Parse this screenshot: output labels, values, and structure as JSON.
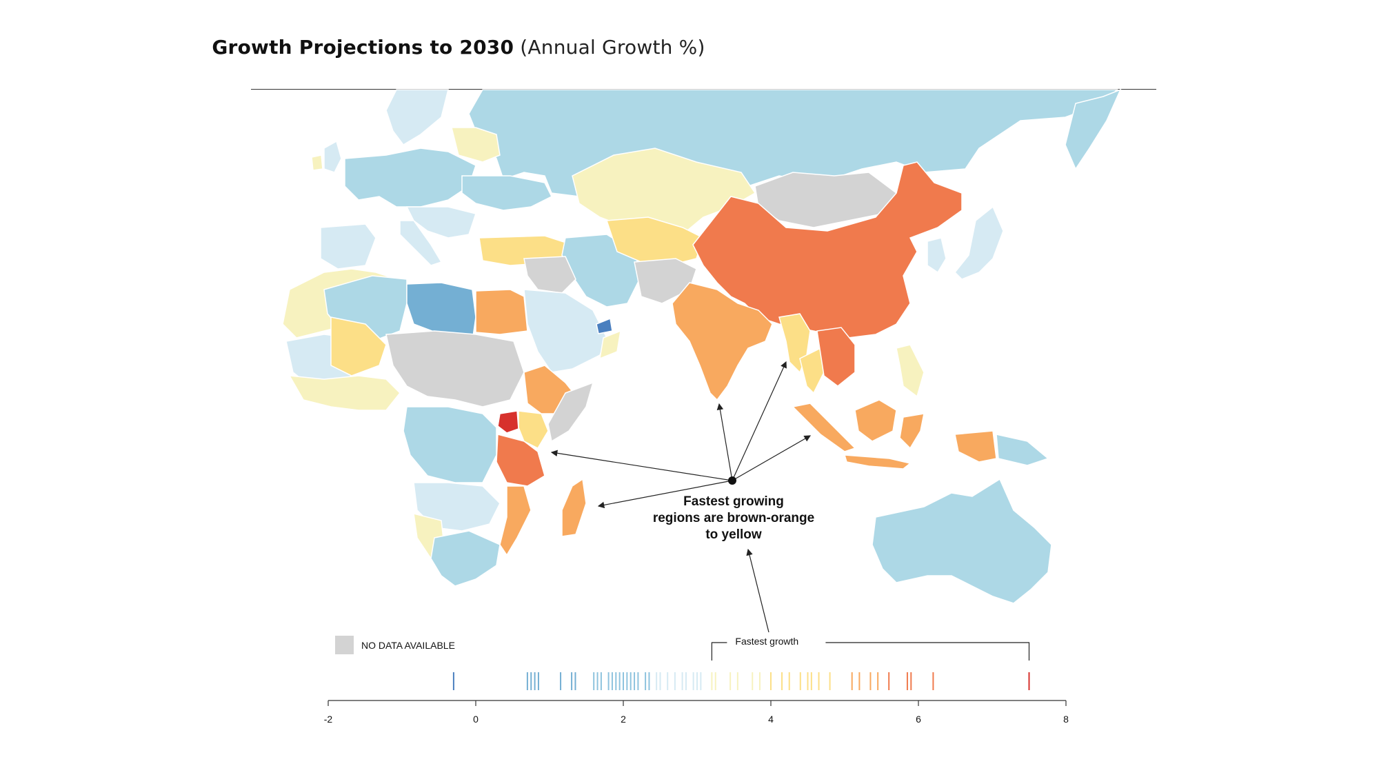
{
  "title": {
    "bold": "Growth Projections to 2030",
    "light": "(Annual Growth %)"
  },
  "annotation": {
    "lines": [
      "Fastest growing",
      "regions are brown-orange",
      "to yellow"
    ]
  },
  "legend": {
    "no_data_label": "NO DATA AVAILABLE",
    "no_data_color": "#d3d3d3",
    "bracket_label": "Fastest growth"
  },
  "colors": {
    "very_low": "#4a7fbf",
    "low": "#74afd3",
    "mid_low": "#add8e6",
    "pale_blue": "#d6eaf3",
    "pale_yellow": "#f7f2bf",
    "yellow": "#fcdf87",
    "orange_light": "#f8a95f",
    "orange": "#f07a4d",
    "red": "#d7312c",
    "no_data": "#d3d3d3"
  },
  "chart_data": {
    "type": "strip",
    "xlim": [
      -2,
      8
    ],
    "ticks": [
      "-2",
      "0",
      "2",
      "4",
      "6",
      "8"
    ],
    "tick_values": [
      -2,
      0,
      2,
      4,
      6,
      8
    ],
    "values": [
      -0.3,
      0.7,
      0.75,
      0.8,
      0.85,
      1.15,
      1.3,
      1.35,
      1.6,
      1.65,
      1.7,
      1.8,
      1.85,
      1.9,
      1.95,
      2.0,
      2.05,
      2.1,
      2.15,
      2.2,
      2.3,
      2.35,
      2.45,
      2.5,
      2.6,
      2.7,
      2.8,
      2.85,
      2.95,
      3.0,
      3.05,
      3.2,
      3.25,
      3.45,
      3.55,
      3.75,
      3.85,
      4.0,
      4.15,
      4.25,
      4.4,
      4.5,
      4.55,
      4.65,
      4.8,
      5.1,
      5.2,
      5.35,
      5.45,
      5.6,
      5.85,
      5.9,
      6.2,
      7.5
    ],
    "fastest_growth_range": [
      3.2,
      7.5
    ]
  }
}
